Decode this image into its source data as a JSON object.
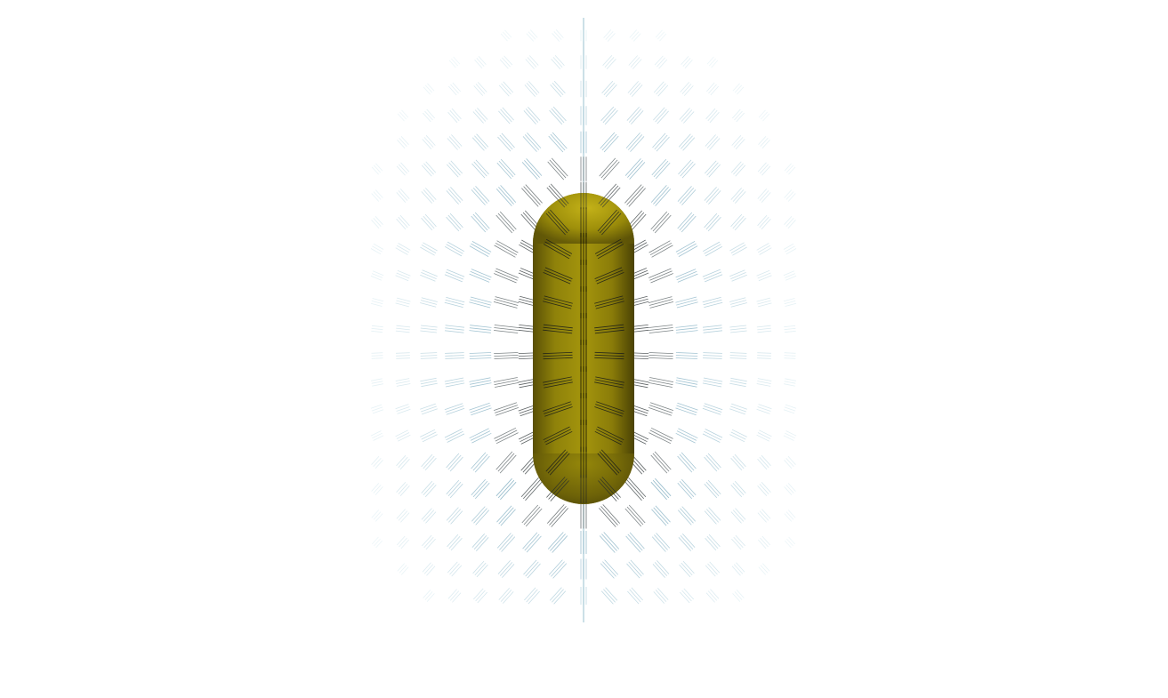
{
  "scene": {
    "description_free": true,
    "background_color": "#ffffff",
    "object": {
      "shape": "capsule",
      "orientation": "vertical",
      "color": "#9e8f0a",
      "highlight_color": "#c9b71a",
      "shadow_color": "#4a4205"
    },
    "field": {
      "near_color": "#d2542e",
      "far_color": "#2a6f8f",
      "fade_color": "#bfe0ea",
      "axis_line_color": "#7fb3c4"
    }
  }
}
